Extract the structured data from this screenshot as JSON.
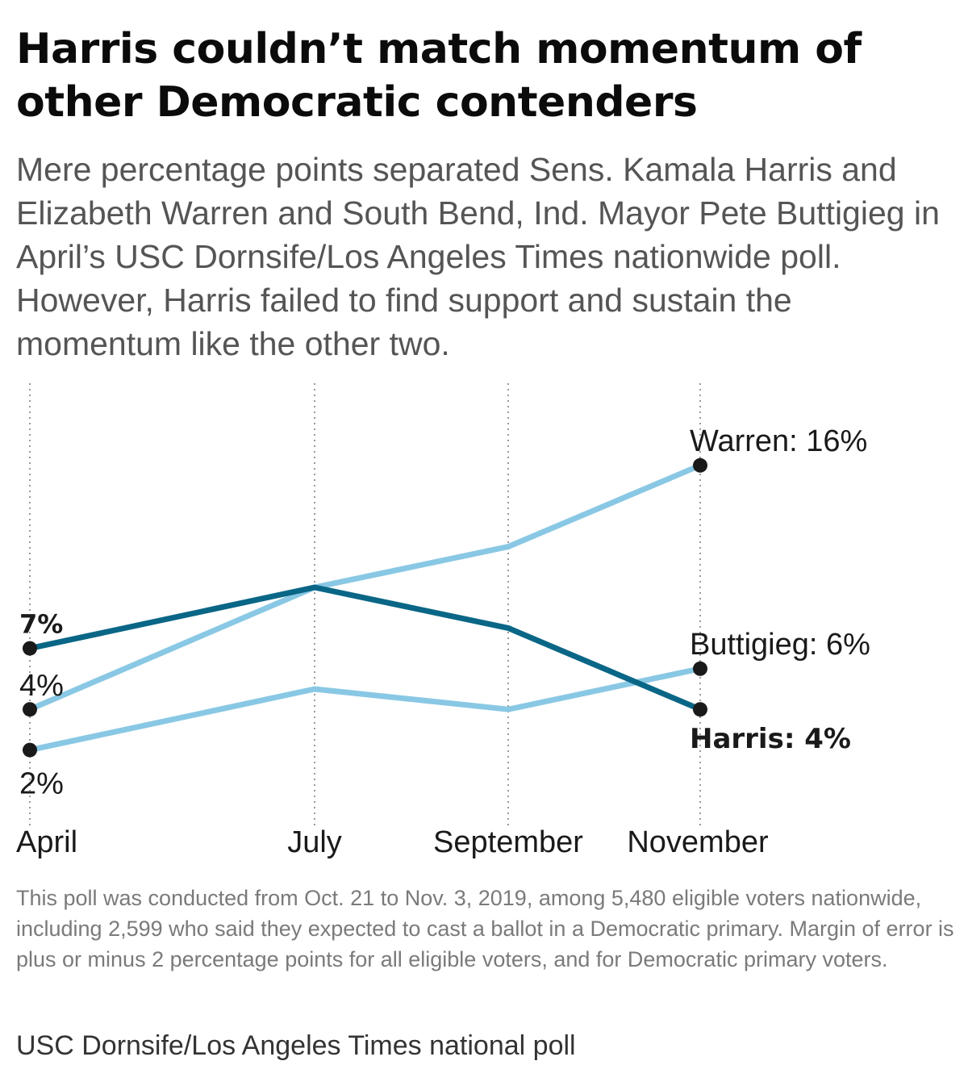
{
  "header": {
    "title": "Harris couldn’t match momentum of other Democratic contenders",
    "subtitle": "Mere percentage points separated Sens. Kamala Harris and Elizabeth Warren and South Bend, Ind. Mayor Pete Buttigieg in April’s USC Dornsife/Los Angeles Times nationwide poll. However, Harris failed to find support and sustain the momentum like the other two."
  },
  "footer": {
    "note": "This poll was conducted from Oct. 21 to Nov. 3, 2019, among 5,480 eligible voters nationwide, including 2,599 who said they expected to cast a ballot in a Democratic primary. Margin of error is plus or minus 2 percentage points for all eligible voters, and for Democratic primary voters.",
    "source": "USC Dornsife/Los Angeles Times national poll"
  },
  "colors": {
    "harris": "#0a6686",
    "others": "#89c8e4",
    "marker": "#1a1a1a",
    "gridline": "#9a9a9a"
  },
  "chart_data": {
    "type": "line",
    "title": "Harris couldn’t match momentum of other Democratic contenders",
    "xlabel": "",
    "ylabel": "",
    "categories": [
      "April",
      "July",
      "September",
      "November"
    ],
    "ylim": [
      0,
      18
    ],
    "grid": "vertical dotted lines at each category",
    "series": [
      {
        "name": "Warren",
        "values": [
          4,
          10,
          12,
          16
        ],
        "style": "light",
        "startLabel": "4%",
        "endLabel": "Warren: 16%",
        "endBold": false
      },
      {
        "name": "Harris",
        "values": [
          7,
          10,
          8,
          4
        ],
        "style": "dark",
        "startLabel": "7%",
        "endLabel": "Harris: 4%",
        "endBold": true
      },
      {
        "name": "Buttigieg",
        "values": [
          2,
          5,
          4,
          6
        ],
        "style": "light",
        "startLabel": "2%",
        "endLabel": "Buttigieg: 6%",
        "endBold": false
      }
    ]
  }
}
